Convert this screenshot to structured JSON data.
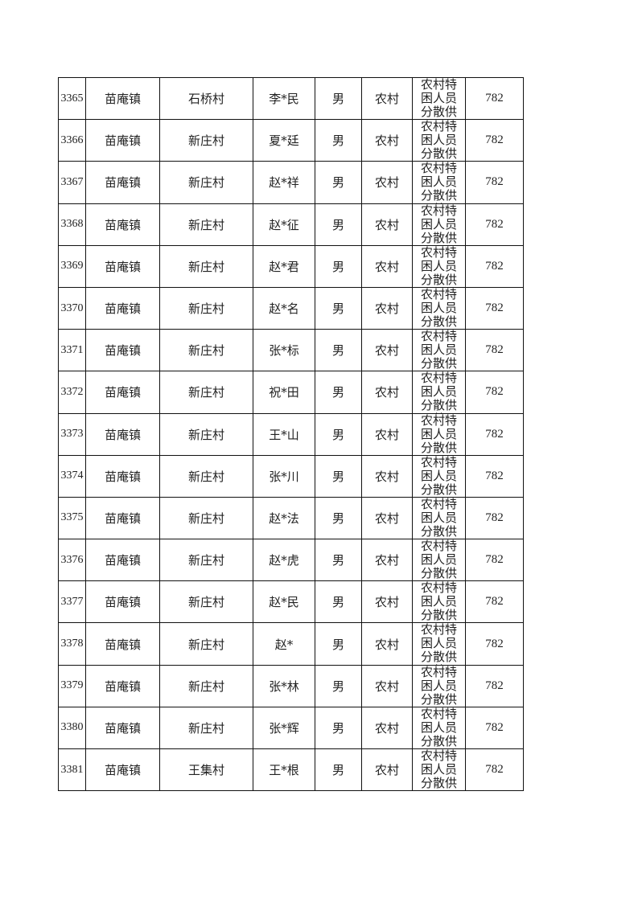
{
  "table": {
    "rows": [
      {
        "no": "3365",
        "town": "苗庵镇",
        "village": "石桥村",
        "name": "李*民",
        "gender": "男",
        "residence": "农村",
        "type": "农村特困人员分散供养",
        "amount": "782"
      },
      {
        "no": "3366",
        "town": "苗庵镇",
        "village": "新庄村",
        "name": "夏*廷",
        "gender": "男",
        "residence": "农村",
        "type": "农村特困人员分散供养",
        "amount": "782"
      },
      {
        "no": "3367",
        "town": "苗庵镇",
        "village": "新庄村",
        "name": "赵*祥",
        "gender": "男",
        "residence": "农村",
        "type": "农村特困人员分散供养",
        "amount": "782"
      },
      {
        "no": "3368",
        "town": "苗庵镇",
        "village": "新庄村",
        "name": "赵*征",
        "gender": "男",
        "residence": "农村",
        "type": "农村特困人员分散供养",
        "amount": "782"
      },
      {
        "no": "3369",
        "town": "苗庵镇",
        "village": "新庄村",
        "name": "赵*君",
        "gender": "男",
        "residence": "农村",
        "type": "农村特困人员分散供养",
        "amount": "782"
      },
      {
        "no": "3370",
        "town": "苗庵镇",
        "village": "新庄村",
        "name": "赵*名",
        "gender": "男",
        "residence": "农村",
        "type": "农村特困人员分散供养",
        "amount": "782"
      },
      {
        "no": "3371",
        "town": "苗庵镇",
        "village": "新庄村",
        "name": "张*标",
        "gender": "男",
        "residence": "农村",
        "type": "农村特困人员分散供养",
        "amount": "782"
      },
      {
        "no": "3372",
        "town": "苗庵镇",
        "village": "新庄村",
        "name": "祝*田",
        "gender": "男",
        "residence": "农村",
        "type": "农村特困人员分散供养",
        "amount": "782"
      },
      {
        "no": "3373",
        "town": "苗庵镇",
        "village": "新庄村",
        "name": "王*山",
        "gender": "男",
        "residence": "农村",
        "type": "农村特困人员分散供养",
        "amount": "782"
      },
      {
        "no": "3374",
        "town": "苗庵镇",
        "village": "新庄村",
        "name": "张*川",
        "gender": "男",
        "residence": "农村",
        "type": "农村特困人员分散供养",
        "amount": "782"
      },
      {
        "no": "3375",
        "town": "苗庵镇",
        "village": "新庄村",
        "name": "赵*法",
        "gender": "男",
        "residence": "农村",
        "type": "农村特困人员分散供养",
        "amount": "782"
      },
      {
        "no": "3376",
        "town": "苗庵镇",
        "village": "新庄村",
        "name": "赵*虎",
        "gender": "男",
        "residence": "农村",
        "type": "农村特困人员分散供养",
        "amount": "782"
      },
      {
        "no": "3377",
        "town": "苗庵镇",
        "village": "新庄村",
        "name": "赵*民",
        "gender": "男",
        "residence": "农村",
        "type": "农村特困人员分散供养",
        "amount": "782"
      },
      {
        "no": "3378",
        "town": "苗庵镇",
        "village": "新庄村",
        "name": "赵*",
        "gender": "男",
        "residence": "农村",
        "type": "农村特困人员分散供养",
        "amount": "782"
      },
      {
        "no": "3379",
        "town": "苗庵镇",
        "village": "新庄村",
        "name": "张*林",
        "gender": "男",
        "residence": "农村",
        "type": "农村特困人员分散供养",
        "amount": "782"
      },
      {
        "no": "3380",
        "town": "苗庵镇",
        "village": "新庄村",
        "name": "张*辉",
        "gender": "男",
        "residence": "农村",
        "type": "农村特困人员分散供养",
        "amount": "782"
      },
      {
        "no": "3381",
        "town": "苗庵镇",
        "village": "王集村",
        "name": "王*根",
        "gender": "男",
        "residence": "农村",
        "type": "农村特困人员分散供养",
        "amount": "782"
      }
    ]
  }
}
